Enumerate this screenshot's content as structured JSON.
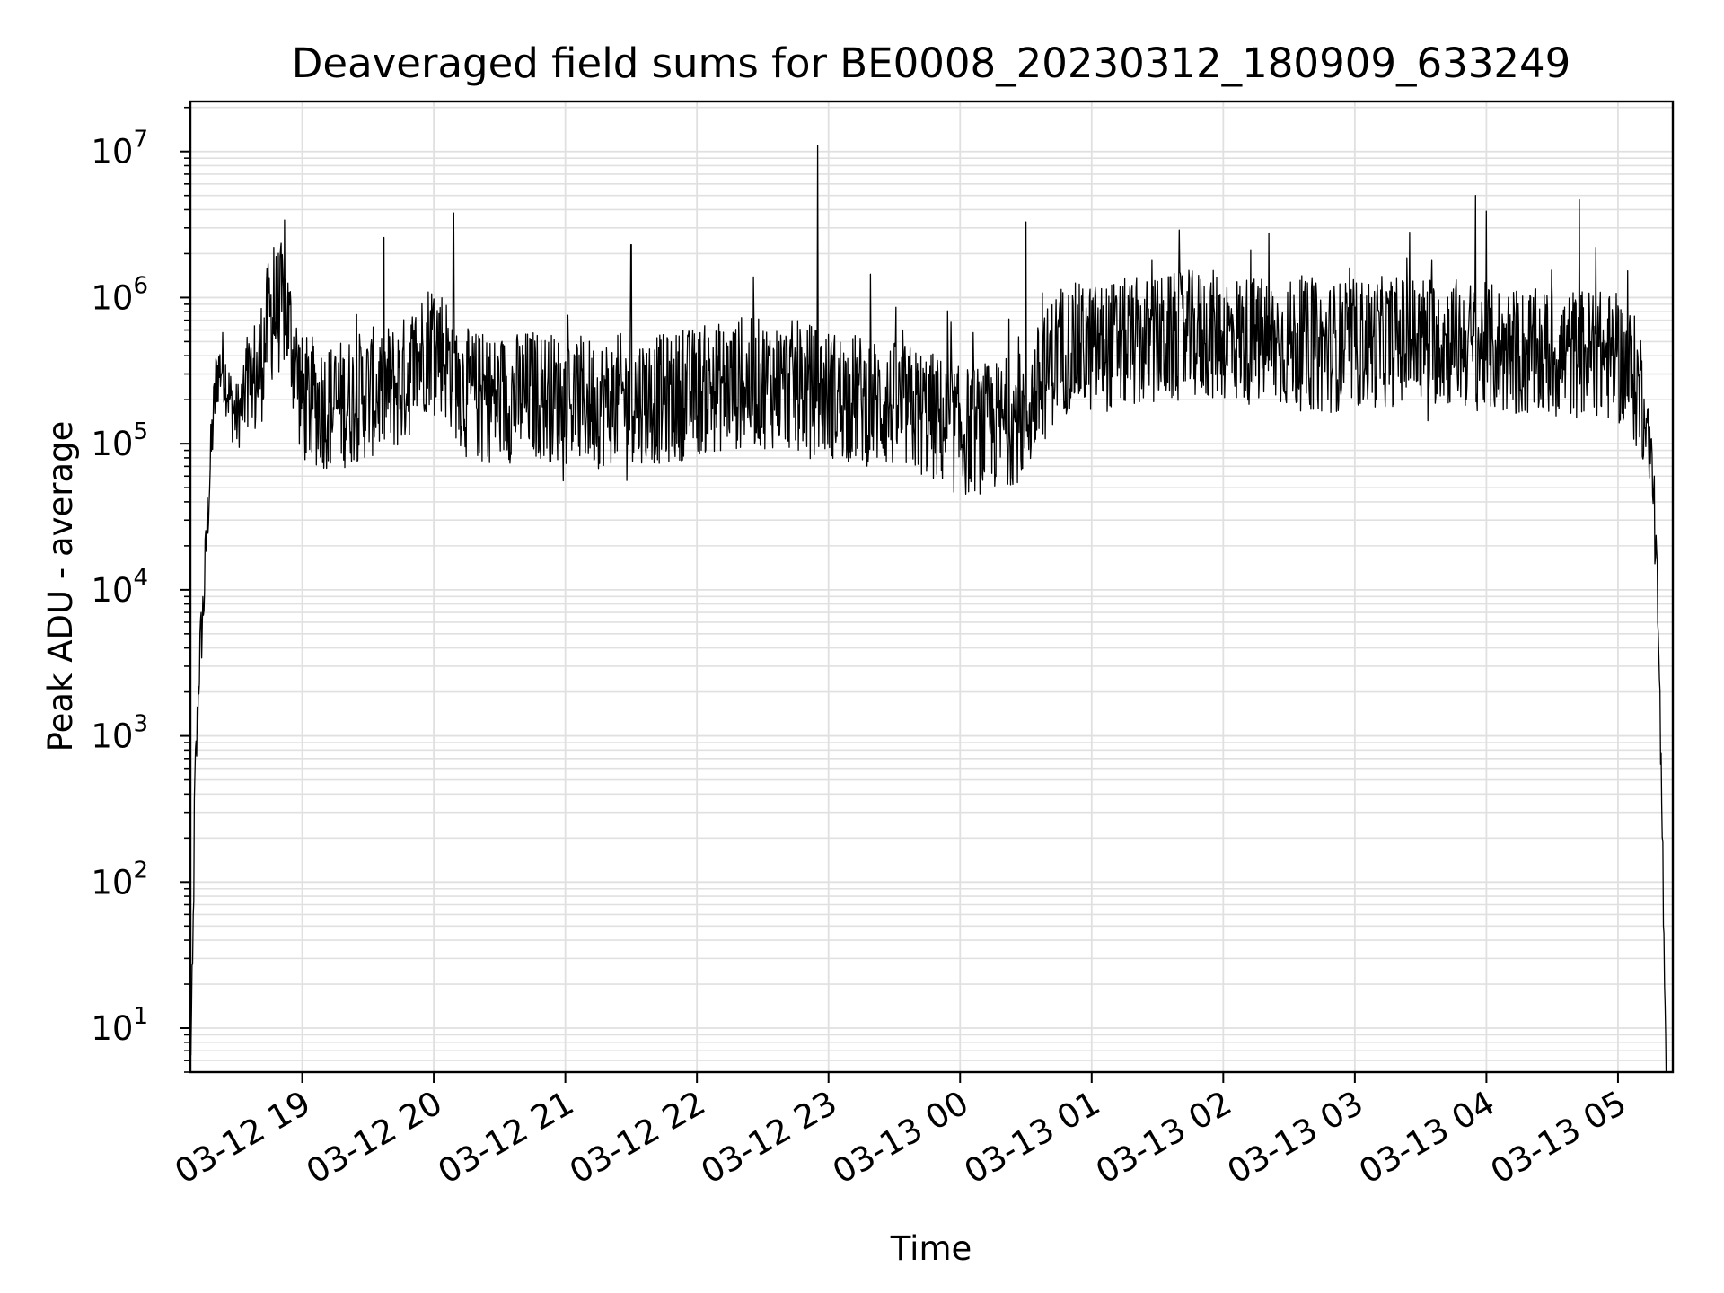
{
  "chart_data": {
    "type": "line",
    "title": "Deaveraged field sums for BE0008_20230312_180909_633249",
    "xlabel": "Time",
    "ylabel": "Peak ADU - average",
    "y_scale": "log",
    "ylim": [
      5,
      22000000
    ],
    "xlim": [
      "2023-03-12 18:09",
      "2023-03-13 05:25"
    ],
    "x_ticks": [
      "2023-03-12 19:00",
      "2023-03-12 20:00",
      "2023-03-12 21:00",
      "2023-03-12 22:00",
      "2023-03-12 23:00",
      "2023-03-13 00:00",
      "2023-03-13 01:00",
      "2023-03-13 02:00",
      "2023-03-13 03:00",
      "2023-03-13 04:00",
      "2023-03-13 05:00"
    ],
    "x_tick_labels": [
      "03-12 19",
      "03-12 20",
      "03-12 21",
      "03-12 22",
      "03-12 23",
      "03-13 00",
      "03-13 01",
      "03-13 02",
      "03-13 03",
      "03-13 04",
      "03-13 05"
    ],
    "y_tick_base": "10",
    "y_tick_exponents": [
      "1",
      "2",
      "3",
      "4",
      "5",
      "6",
      "7"
    ],
    "y_ticks": [
      10,
      100,
      1000,
      10000,
      100000,
      1000000,
      10000000
    ],
    "grid": true,
    "line_color": "#000000",
    "grid_color": "#e0e0e0",
    "series": [
      {
        "x": [
          "2023-03-12 18:09",
          "2023-03-12 18:10",
          "2023-03-12 18:11",
          "2023-03-12 18:12",
          "2023-03-12 18:13",
          "2023-03-12 18:15",
          "2023-03-12 18:17",
          "2023-03-12 18:19",
          "2023-03-12 18:21",
          "2023-03-12 18:24",
          "2023-03-12 18:27",
          "2023-03-12 18:30",
          "2023-03-12 18:35",
          "2023-03-12 18:40",
          "2023-03-12 18:45",
          "2023-03-12 18:52",
          "2023-03-12 19:00",
          "2023-03-12 19:15",
          "2023-03-12 19:30",
          "2023-03-12 19:45",
          "2023-03-12 20:00",
          "2023-03-12 20:15",
          "2023-03-12 20:30",
          "2023-03-12 20:45",
          "2023-03-12 21:00",
          "2023-03-12 21:15",
          "2023-03-12 21:30",
          "2023-03-12 21:45",
          "2023-03-12 22:00",
          "2023-03-12 22:15",
          "2023-03-12 22:30",
          "2023-03-12 22:45",
          "2023-03-12 23:00",
          "2023-03-12 23:15",
          "2023-03-12 23:30",
          "2023-03-12 23:45",
          "2023-03-13 00:00",
          "2023-03-13 00:15",
          "2023-03-13 00:30",
          "2023-03-13 00:45",
          "2023-03-13 01:00",
          "2023-03-13 01:15",
          "2023-03-13 01:30",
          "2023-03-13 01:45",
          "2023-03-13 02:00",
          "2023-03-13 02:15",
          "2023-03-13 02:30",
          "2023-03-13 02:45",
          "2023-03-13 03:00",
          "2023-03-13 03:15",
          "2023-03-13 03:30",
          "2023-03-13 03:45",
          "2023-03-13 04:00",
          "2023-03-13 04:15",
          "2023-03-13 04:30",
          "2023-03-13 04:45",
          "2023-03-13 05:00",
          "2023-03-13 05:06",
          "2023-03-13 05:12",
          "2023-03-13 05:16",
          "2023-03-13 05:18",
          "2023-03-13 05:20",
          "2023-03-13 05:21",
          "2023-03-13 05:22"
        ],
        "y": [
          6,
          20,
          420,
          1000,
          3000,
          8000,
          35000,
          120000,
          300000,
          350000,
          200000,
          150000,
          220000,
          300000,
          700000,
          900000,
          200000,
          180000,
          220000,
          250000,
          550000,
          220000,
          200000,
          220000,
          200000,
          190000,
          210000,
          200000,
          230000,
          250000,
          260000,
          250000,
          220000,
          200000,
          180000,
          160000,
          120000,
          130000,
          160000,
          450000,
          450000,
          480000,
          500000,
          550000,
          550000,
          500000,
          480000,
          450000,
          480000,
          500000,
          520000,
          500000,
          450000,
          420000,
          400000,
          420000,
          380000,
          300000,
          200000,
          60000,
          8000,
          300,
          50,
          5
        ],
        "spikes": [
          {
            "x": "2023-03-12 18:47",
            "y": 2200000
          },
          {
            "x": "2023-03-12 20:09",
            "y": 3800000
          },
          {
            "x": "2023-03-12 21:30",
            "y": 2300000
          },
          {
            "x": "2023-03-12 22:55",
            "y": 11000000
          },
          {
            "x": "2023-03-13 00:30",
            "y": 3300000
          },
          {
            "x": "2023-03-13 01:40",
            "y": 2900000
          },
          {
            "x": "2023-03-13 03:25",
            "y": 2800000
          },
          {
            "x": "2023-03-13 03:55",
            "y": 5000000
          },
          {
            "x": "2023-03-13 04:50",
            "y": 2200000
          }
        ]
      }
    ]
  }
}
